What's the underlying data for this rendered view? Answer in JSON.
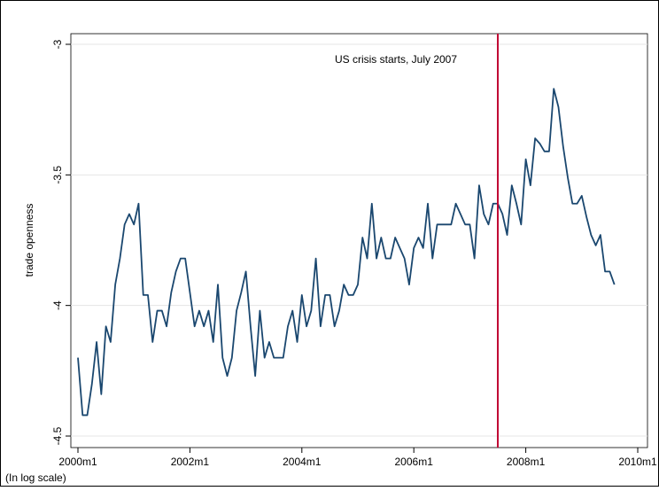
{
  "chart_data": {
    "type": "line",
    "y_label": "trade openness",
    "note": "(In log scale)",
    "annotation": "US crisis starts, July 2007",
    "vline_x": 570,
    "vline_color": "#c10534",
    "x": [
      480,
      481,
      482,
      483,
      484,
      485,
      486,
      487,
      488,
      489,
      490,
      491,
      492,
      493,
      494,
      495,
      496,
      497,
      498,
      499,
      500,
      501,
      502,
      503,
      504,
      505,
      506,
      507,
      508,
      509,
      510,
      511,
      512,
      513,
      514,
      515,
      516,
      517,
      518,
      519,
      520,
      521,
      522,
      523,
      524,
      525,
      526,
      527,
      528,
      529,
      530,
      531,
      532,
      533,
      534,
      535,
      536,
      537,
      538,
      539,
      540,
      541,
      542,
      543,
      544,
      545,
      546,
      547,
      548,
      549,
      550,
      551,
      552,
      553,
      554,
      555,
      556,
      557,
      558,
      559,
      560,
      561,
      562,
      563,
      564,
      565,
      566,
      567,
      568,
      569,
      570,
      571,
      572,
      573,
      574,
      575,
      576,
      577,
      578,
      579,
      580,
      581,
      582,
      583,
      584,
      585,
      586,
      587,
      588,
      589,
      590,
      591,
      592,
      593,
      594,
      595
    ],
    "series": [
      {
        "color": "#1a476f",
        "values": [
          -4.2,
          -4.42,
          -4.42,
          -4.3,
          -4.14,
          -4.34,
          -4.08,
          -4.14,
          -3.92,
          -3.82,
          -3.69,
          -3.65,
          -3.69,
          -3.61,
          -3.96,
          -3.96,
          -4.14,
          -4.02,
          -4.02,
          -4.08,
          -3.95,
          -3.87,
          -3.82,
          -3.82,
          -3.95,
          -4.08,
          -4.02,
          -4.08,
          -4.02,
          -4.14,
          -3.92,
          -4.2,
          -4.27,
          -4.2,
          -4.02,
          -3.95,
          -3.87,
          -4.08,
          -4.27,
          -4.02,
          -4.2,
          -4.14,
          -4.2,
          -4.2,
          -4.2,
          -4.08,
          -4.02,
          -4.14,
          -3.96,
          -4.08,
          -4.02,
          -3.82,
          -4.08,
          -3.96,
          -3.96,
          -4.08,
          -4.02,
          -3.92,
          -3.96,
          -3.96,
          -3.92,
          -3.74,
          -3.82,
          -3.61,
          -3.82,
          -3.74,
          -3.82,
          -3.82,
          -3.74,
          -3.78,
          -3.82,
          -3.92,
          -3.78,
          -3.74,
          -3.78,
          -3.61,
          -3.82,
          -3.69,
          -3.69,
          -3.69,
          -3.69,
          -3.61,
          -3.65,
          -3.69,
          -3.69,
          -3.82,
          -3.54,
          -3.65,
          -3.69,
          -3.61,
          -3.61,
          -3.65,
          -3.73,
          -3.54,
          -3.61,
          -3.69,
          -3.44,
          -3.54,
          -3.36,
          -3.38,
          -3.41,
          -3.41,
          -3.17,
          -3.24,
          -3.39,
          -3.51,
          -3.61,
          -3.61,
          -3.58,
          -3.66,
          -3.73,
          -3.77,
          -3.73,
          -3.87,
          -3.87,
          -3.92
        ]
      }
    ],
    "xlim": [
      480,
      600
    ],
    "xticks": [
      {
        "value": 480,
        "label": "2000m1"
      },
      {
        "value": 504,
        "label": "2002m1"
      },
      {
        "value": 528,
        "label": "2004m1"
      },
      {
        "value": 552,
        "label": "2006m1"
      },
      {
        "value": 576,
        "label": "2008m1"
      },
      {
        "value": 600,
        "label": "2010m1"
      }
    ],
    "ylim": [
      -4.5,
      -3
    ],
    "yticks": [
      -4.5,
      -4,
      -3.5,
      -3
    ],
    "grid": true
  }
}
